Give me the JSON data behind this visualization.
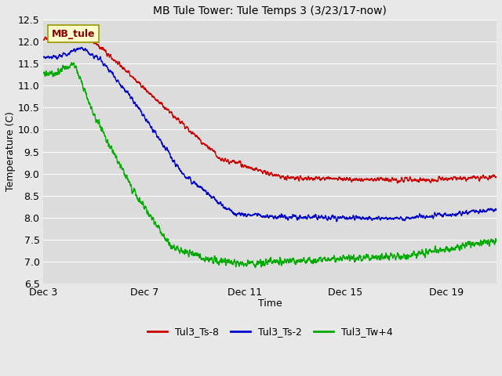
{
  "title": "MB Tule Tower: Tule Temps 3 (3/23/17-now)",
  "xlabel": "Time",
  "ylabel": "Temperature (C)",
  "ylim": [
    6.5,
    12.5
  ],
  "yticks": [
    6.5,
    7.0,
    7.5,
    8.0,
    8.5,
    9.0,
    9.5,
    10.0,
    10.5,
    11.0,
    11.5,
    12.0,
    12.5
  ],
  "xtick_labels": [
    "Dec 3",
    "Dec 7",
    "Dec 11",
    "Dec 15",
    "Dec 19"
  ],
  "xtick_positions": [
    3,
    7,
    11,
    15,
    19
  ],
  "xlim": [
    3,
    21
  ],
  "series": {
    "Tul3_Ts-8": {
      "color": "#cc0000"
    },
    "Tul3_Ts-2": {
      "color": "#0000cc"
    },
    "Tul3_Tw+4": {
      "color": "#00aa00"
    }
  },
  "legend_label": "MB_tule",
  "fig_bg_color": "#e8e8e8",
  "plot_bg_color": "#dcdcdc",
  "grid_color": "#ffffff",
  "title_fontsize": 10,
  "label_fontsize": 9,
  "tick_fontsize": 9
}
